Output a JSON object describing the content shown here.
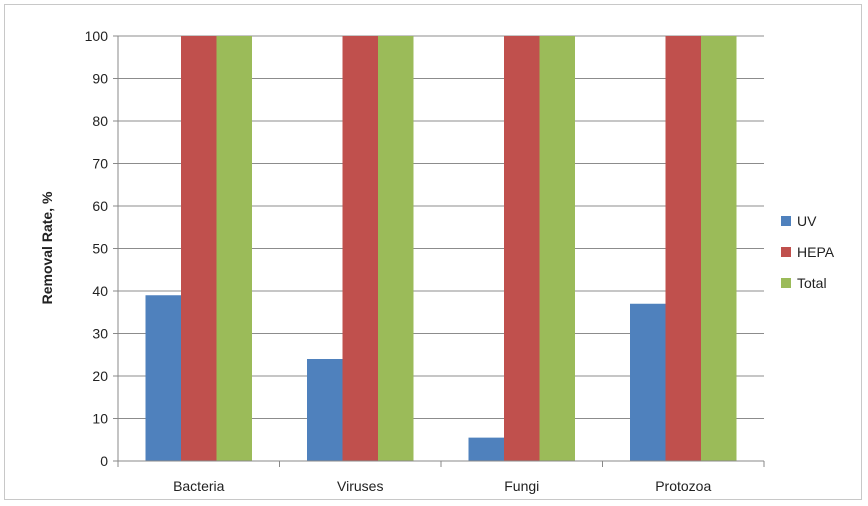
{
  "chart_data": {
    "type": "bar",
    "title": "",
    "xlabel": "",
    "ylabel": "Removal Rate, %",
    "ylim": [
      0,
      100
    ],
    "yticks": [
      0,
      10,
      20,
      30,
      40,
      50,
      60,
      70,
      80,
      90,
      100
    ],
    "grid": true,
    "legend_position": "right",
    "categories": [
      "Bacteria",
      "Viruses",
      "Fungi",
      "Protozoa"
    ],
    "series": [
      {
        "name": "UV",
        "color": "#4f81bd",
        "values": [
          39,
          24,
          5.5,
          37
        ]
      },
      {
        "name": "HEPA",
        "color": "#c0504d",
        "values": [
          100,
          100,
          100,
          100
        ]
      },
      {
        "name": "Total",
        "color": "#9bbb59",
        "values": [
          100,
          100,
          100,
          100
        ]
      }
    ]
  }
}
